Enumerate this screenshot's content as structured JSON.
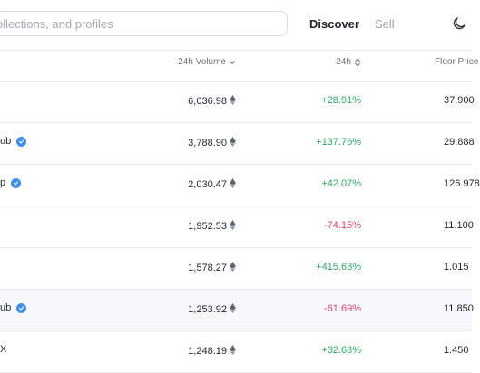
{
  "header": {
    "search_placeholder": "ollections, and profiles",
    "nav": {
      "discover": "Discover",
      "sell": "Sell"
    },
    "theme_icon": "moon-icon"
  },
  "table": {
    "columns": {
      "volume": "24h Volume",
      "change": "24h",
      "floor": "Floor Price"
    },
    "currency_icon": "ethereum-icon",
    "rows": [
      {
        "name": "",
        "verified": false,
        "volume": "6,036.98",
        "change": "+28.91%",
        "direction": "up",
        "floor": "37.900"
      },
      {
        "name": "ub",
        "verified": true,
        "volume": "3,788.90",
        "change": "+137.76%",
        "direction": "up",
        "floor": "29.888"
      },
      {
        "name": "p",
        "verified": true,
        "volume": "2,030.47",
        "change": "+42.07%",
        "direction": "up",
        "floor": "126.978"
      },
      {
        "name": "",
        "verified": false,
        "volume": "1,952.53",
        "change": "-74.15%",
        "direction": "down",
        "floor": "11.100"
      },
      {
        "name": "",
        "verified": false,
        "volume": "1,578.27",
        "change": "+415.63%",
        "direction": "up",
        "floor": "1.015"
      },
      {
        "name": "ub",
        "verified": true,
        "volume": "1,253.92",
        "change": "-61.69%",
        "direction": "down",
        "floor": "11.850"
      },
      {
        "name": "X",
        "verified": false,
        "volume": "1,248.19",
        "change": "+32.68%",
        "direction": "up",
        "floor": "1.450"
      }
    ]
  },
  "colors": {
    "positive": "#2fa866",
    "negative": "#e4406a",
    "verified_badge": "#3f8ef0"
  }
}
